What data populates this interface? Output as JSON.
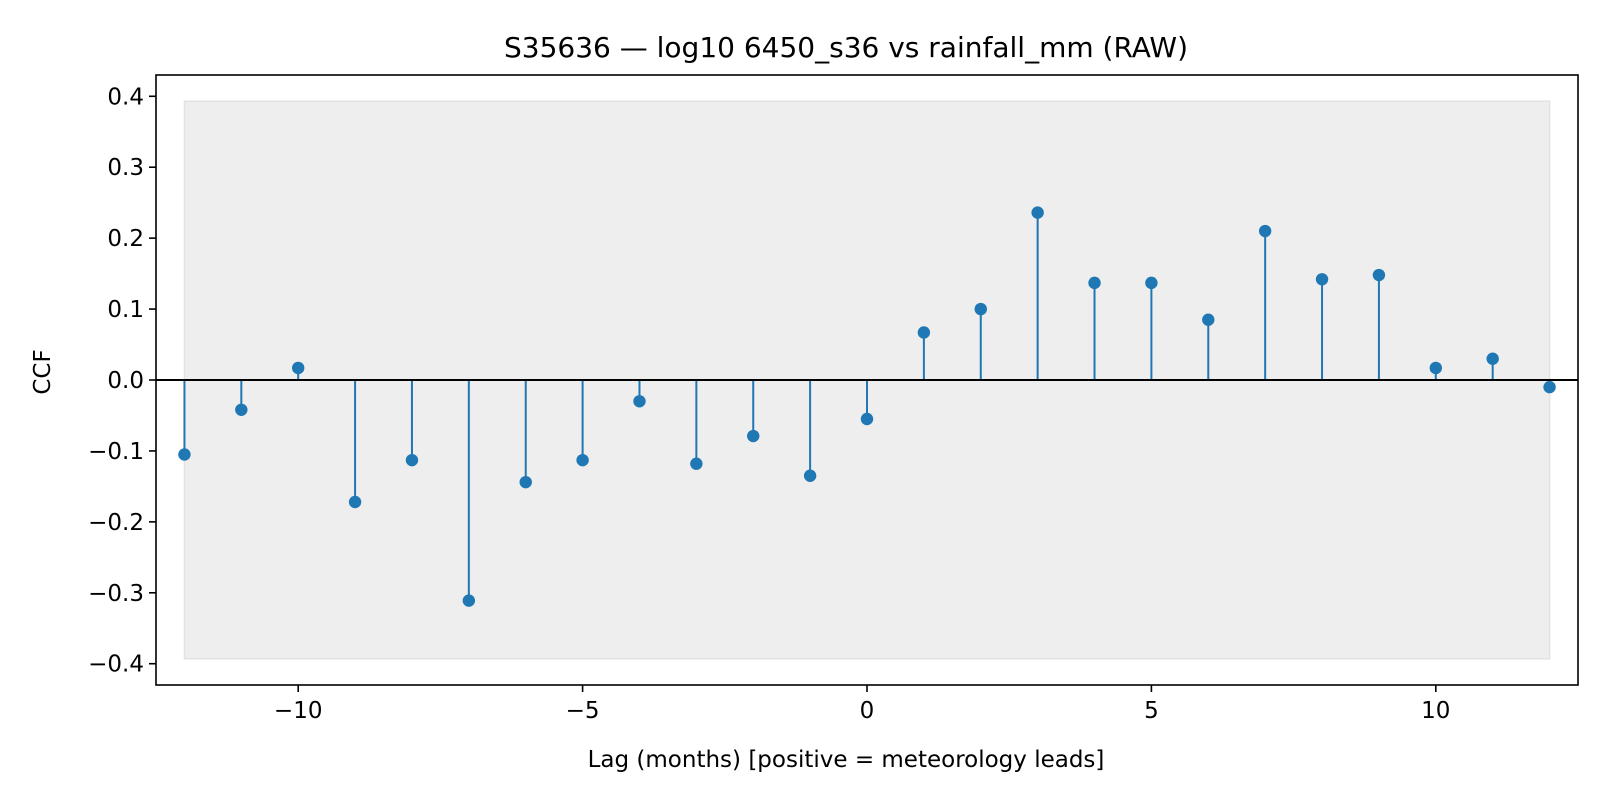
{
  "chart_data": {
    "type": "stem",
    "title": "S35636 — log10 6450_s36 vs rainfall_mm (RAW)",
    "xlabel": "Lag (months)  [positive = meteorology leads]",
    "ylabel": "CCF",
    "x": [
      -12,
      -11,
      -10,
      -9,
      -8,
      -7,
      -6,
      -5,
      -4,
      -3,
      -2,
      -1,
      0,
      1,
      2,
      3,
      4,
      5,
      6,
      7,
      8,
      9,
      10,
      11,
      12
    ],
    "values": [
      -0.105,
      -0.042,
      0.017,
      -0.172,
      -0.113,
      -0.311,
      -0.144,
      -0.113,
      -0.03,
      -0.118,
      -0.079,
      -0.135,
      -0.055,
      0.067,
      0.1,
      0.236,
      0.137,
      0.137,
      0.085,
      0.21,
      0.142,
      0.148,
      0.017,
      0.03,
      -0.01
    ],
    "confidence_band": [
      -0.393,
      0.393
    ],
    "xlim": [
      -12.5,
      12.5
    ],
    "ylim": [
      -0.43,
      0.43
    ],
    "xticks": [
      -10,
      -5,
      0,
      5,
      10
    ],
    "xtick_labels": [
      "−10",
      "−5",
      "0",
      "5",
      "10"
    ],
    "yticks": [
      -0.4,
      -0.3,
      -0.2,
      -0.1,
      0.0,
      0.1,
      0.2,
      0.3,
      0.4
    ],
    "ytick_labels": [
      "−0.4",
      "−0.3",
      "−0.2",
      "−0.1",
      "0.0",
      "0.1",
      "0.2",
      "0.3",
      "0.4"
    ],
    "grid": false,
    "colors": {
      "stem": "#1f77b4",
      "band": "#eeeeee",
      "zero_line": "#000000"
    }
  }
}
